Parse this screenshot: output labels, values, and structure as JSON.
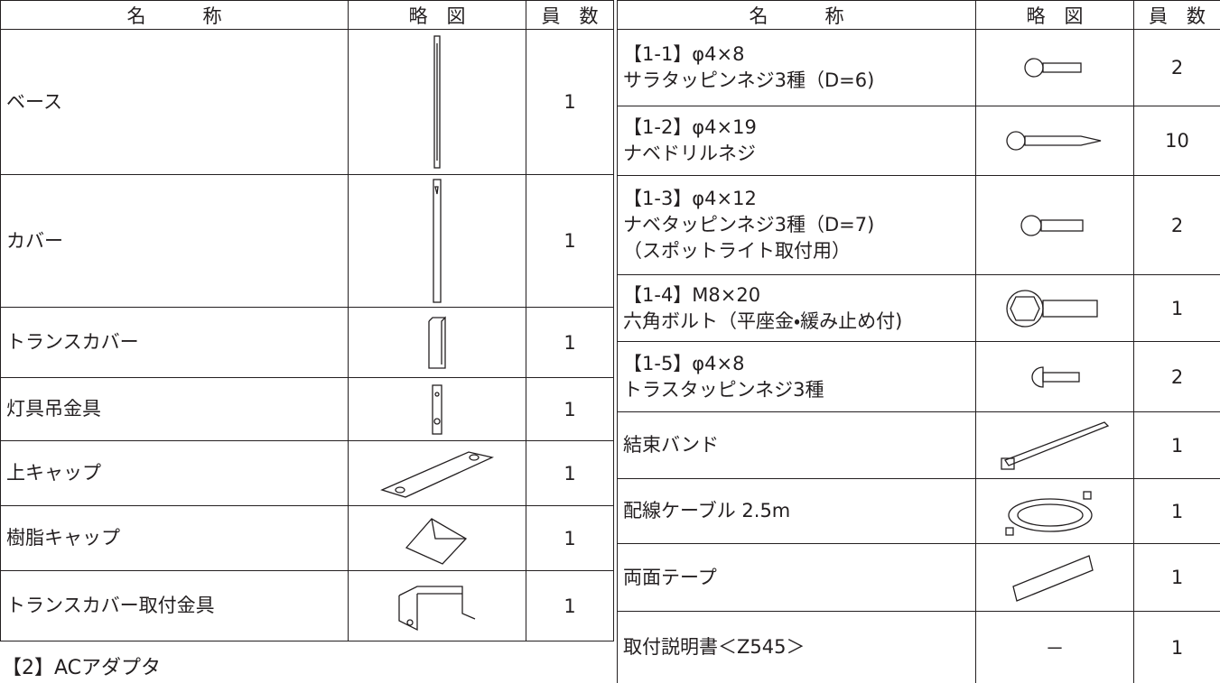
{
  "left_table": {
    "headers": [
      "名　　　称",
      "略　図",
      "員　数"
    ],
    "rows": [
      {
        "name": "ベース",
        "qty": 1
      },
      {
        "name": "カバー",
        "qty": 1
      },
      {
        "name": "トランスカバー",
        "qty": 1
      },
      {
        "name": "灯具吊金具",
        "qty": 1
      },
      {
        "name": "上キャップ",
        "qty": 1
      },
      {
        "name": "樹脂キャップ",
        "qty": 1
      },
      {
        "name": "トランスカバー取付金具",
        "qty": 1
      }
    ]
  },
  "note": "【2】ACアダプタ",
  "right_table": {
    "headers": [
      "名　　　称",
      "略　図",
      "員　数"
    ],
    "rows": [
      {
        "lines": [
          "【1-1】φ4×8",
          "サラタッピンネジ3種（D=6)"
        ],
        "qty": 2
      },
      {
        "lines": [
          "【1-2】φ4×19",
          "ナベドリルネジ"
        ],
        "qty": 10
      },
      {
        "lines": [
          "【1-3】φ4×12",
          "ナベタッピンネジ3種（D=7)",
          "（スポットライト取付用）"
        ],
        "qty": 2
      },
      {
        "lines": [
          "【1-4】M8×20",
          "六角ボルト（平座金・緩み止め付)"
        ],
        "qty": 1
      },
      {
        "lines": [
          "【1-5】φ4×8",
          "トラスタッピンネジ3種"
        ],
        "qty": 2
      },
      {
        "lines": [
          "結束バンド"
        ],
        "qty": 1
      },
      {
        "lines": [
          "配線ケーブル 2.5m"
        ],
        "qty": 1
      },
      {
        "lines": [
          "両面テープ"
        ],
        "qty": 1
      },
      {
        "lines": [
          "取付説明書＜Z545＞"
        ],
        "sketch": "－",
        "qty": 1
      }
    ]
  }
}
